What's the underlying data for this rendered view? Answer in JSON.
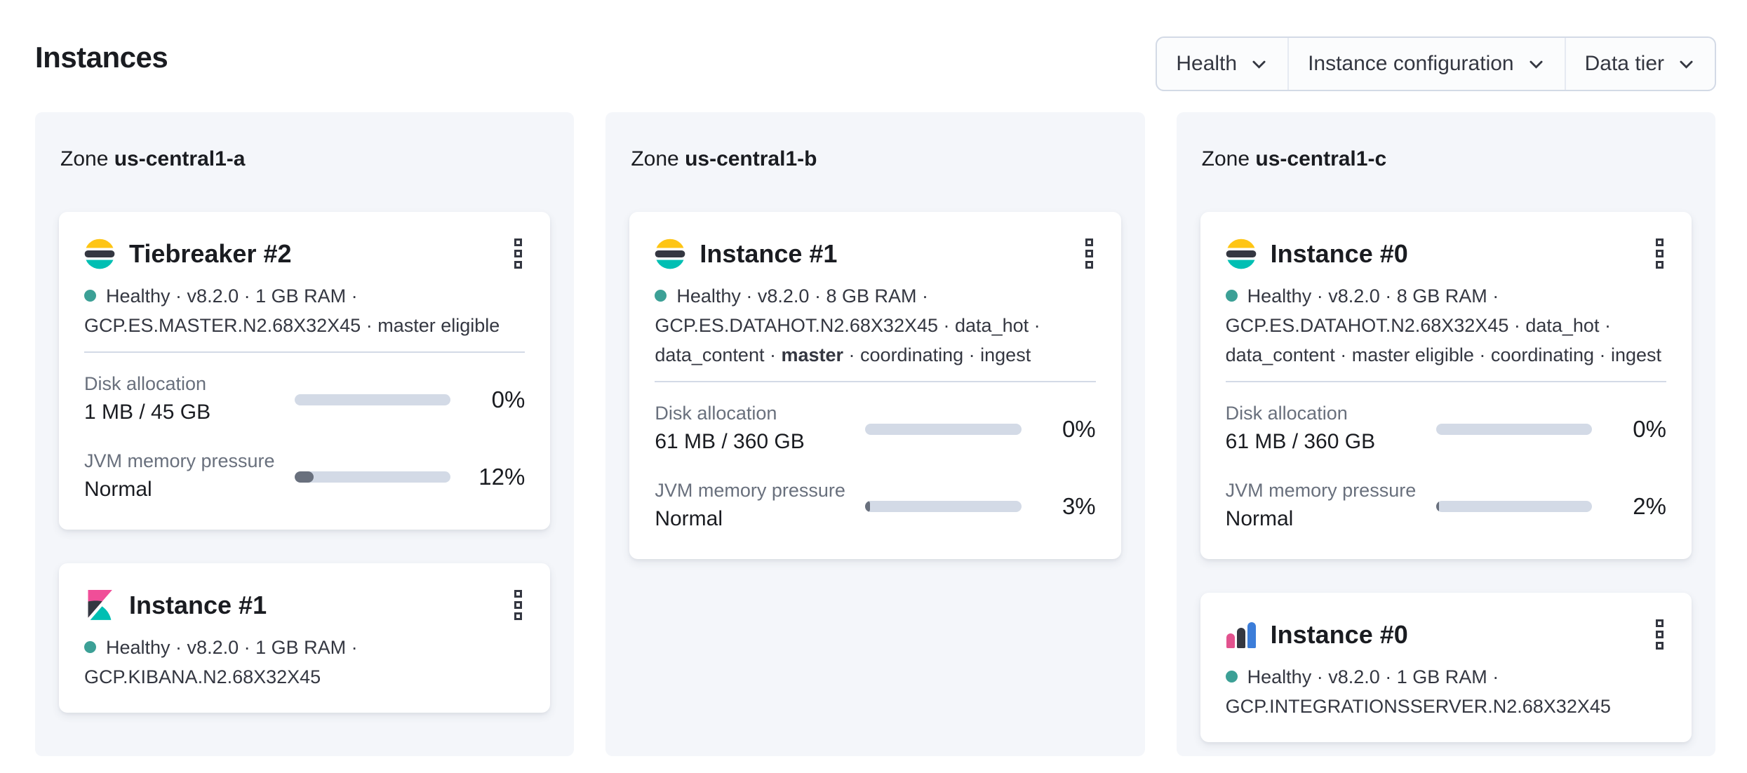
{
  "page": {
    "title": "Instances"
  },
  "filters": [
    {
      "label": "Health"
    },
    {
      "label": "Instance configuration"
    },
    {
      "label": "Data tier"
    }
  ],
  "colors": {
    "health_dot": "#3CA096",
    "bar_track": "#D3DAE6",
    "bar_fill": "#69707D",
    "panel_bg": "#F4F6FA",
    "card_bg": "#FFFFFF",
    "text_title": "#1A1C21",
    "text_meta": "#343741",
    "text_subdued": "#69707D",
    "divider": "#D3DAE6",
    "filter_border": "#D3DAE6",
    "es_yellow": "#FEC514",
    "es_dark": "#343741",
    "es_teal": "#00BFB3",
    "kibana_pink": "#F04E98",
    "integrations_pink": "#E2528E",
    "integrations_blue": "#3C7DD9"
  },
  "zones": [
    {
      "prefix": "Zone",
      "name": "us-central1-a",
      "cards": [
        {
          "logo": "elasticsearch-logo",
          "title": "Tiebreaker #2",
          "meta": [
            {
              "text": "Healthy"
            },
            {
              "text": "v8.2.0"
            },
            {
              "text": "1 GB RAM"
            },
            {
              "text": "GCP.ES.MASTER.N2.68X32X45"
            },
            {
              "text": "master eligible"
            }
          ],
          "metrics": [
            {
              "label": "Disk allocation",
              "value": "1 MB / 45 GB",
              "percent": 0,
              "percent_label": "0%"
            },
            {
              "label": "JVM memory pressure",
              "value": "Normal",
              "percent": 12,
              "percent_label": "12%"
            }
          ]
        },
        {
          "logo": "kibana-logo",
          "title": "Instance #1",
          "meta": [
            {
              "text": "Healthy"
            },
            {
              "text": "v8.2.0"
            },
            {
              "text": "1 GB RAM"
            },
            {
              "text": "GCP.KIBANA.N2.68X32X45"
            }
          ]
        }
      ]
    },
    {
      "prefix": "Zone",
      "name": "us-central1-b",
      "cards": [
        {
          "logo": "elasticsearch-logo",
          "title": "Instance #1",
          "meta": [
            {
              "text": "Healthy"
            },
            {
              "text": "v8.2.0"
            },
            {
              "text": "8 GB RAM"
            },
            {
              "text": "GCP.ES.DATAHOT.N2.68X32X45"
            },
            {
              "text": "data_hot"
            },
            {
              "text": "data_content"
            },
            {
              "text": "master",
              "bold": true
            },
            {
              "text": "coordinating"
            },
            {
              "text": "ingest"
            }
          ],
          "metrics": [
            {
              "label": "Disk allocation",
              "value": "61 MB / 360 GB",
              "percent": 0,
              "percent_label": "0%"
            },
            {
              "label": "JVM memory pressure",
              "value": "Normal",
              "percent": 3,
              "percent_label": "3%"
            }
          ]
        }
      ]
    },
    {
      "prefix": "Zone",
      "name": "us-central1-c",
      "cards": [
        {
          "logo": "elasticsearch-logo",
          "title": "Instance #0",
          "meta": [
            {
              "text": "Healthy"
            },
            {
              "text": "v8.2.0"
            },
            {
              "text": "8 GB RAM"
            },
            {
              "text": "GCP.ES.DATAHOT.N2.68X32X45"
            },
            {
              "text": "data_hot"
            },
            {
              "text": "data_content"
            },
            {
              "text": "master eligible"
            },
            {
              "text": "coordinating"
            },
            {
              "text": "ingest"
            }
          ],
          "metrics": [
            {
              "label": "Disk allocation",
              "value": "61 MB / 360 GB",
              "percent": 0,
              "percent_label": "0%"
            },
            {
              "label": "JVM memory pressure",
              "value": "Normal",
              "percent": 2,
              "percent_label": "2%"
            }
          ]
        },
        {
          "logo": "integrations-server-logo",
          "title": "Instance #0",
          "meta": [
            {
              "text": "Healthy"
            },
            {
              "text": "v8.2.0"
            },
            {
              "text": "1 GB RAM"
            },
            {
              "text": "GCP.INTEGRATIONSSERVER.N2.68X32X45"
            }
          ]
        }
      ]
    }
  ]
}
